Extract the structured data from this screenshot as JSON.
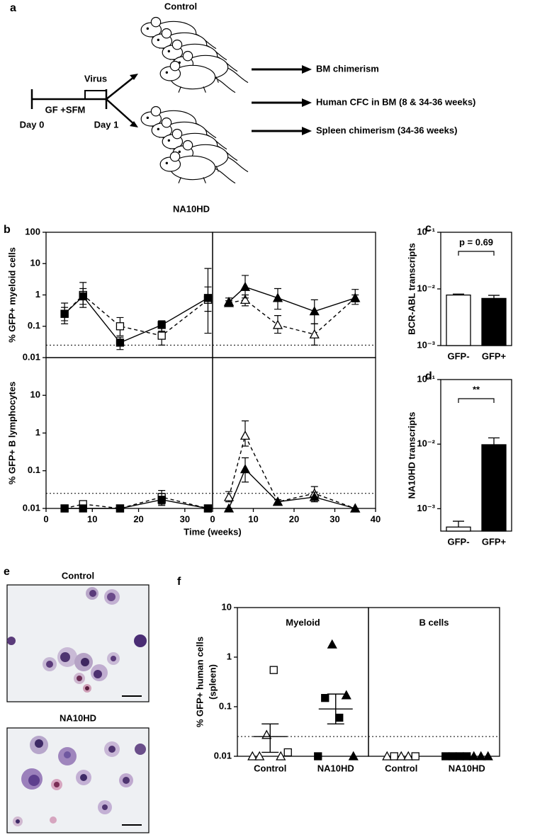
{
  "diagram": {
    "panel_label": "a",
    "groups": [
      "Control",
      "NA10HD"
    ],
    "timeline": {
      "treatment": "Virus",
      "medium": "GF +SFM",
      "start": "Day 0",
      "end": "Day 1"
    },
    "readouts": [
      "BM chimerism",
      "Human CFC in BM (8 & 34-36 weeks)",
      "Spleen chimerism (34-36 weeks)"
    ]
  },
  "micrographs": {
    "panel_label": "e",
    "images": [
      "Control",
      "NA10HD"
    ]
  },
  "chart_data": [
    {
      "type": "line",
      "panel_label": "b",
      "x_label": "Time (weeks)",
      "threshold": 0.025,
      "x": [
        4,
        8,
        16,
        25,
        35
      ],
      "columns": [
        {
          "xlim": [
            0,
            36
          ],
          "xticks": [
            0,
            10,
            20,
            30
          ]
        },
        {
          "xlim": [
            0,
            40
          ],
          "xticks": [
            0,
            10,
            20,
            30,
            40
          ]
        }
      ],
      "rows": [
        {
          "y_label": "% GFP+ myeloid cells",
          "log_scale": true,
          "ylim": [
            0.01,
            100
          ],
          "yticks": [
            0.01,
            0.1,
            1,
            10,
            100
          ],
          "plots": [
            {
              "series": [
                {
                  "marker": "open-square",
                  "dashed": true,
                  "color": "#000000",
                  "values": [
                    0.25,
                    1.0,
                    0.1,
                    0.05,
                    0.7
                  ],
                  "errors": [
                    [
                      0.15,
                      0.4
                    ],
                    [
                      0.5,
                      2.5
                    ],
                    [
                      0.05,
                      0.19
                    ],
                    [
                      0.025,
                      0.1
                    ],
                    [
                      0.06,
                      7.0
                    ]
                  ]
                },
                {
                  "marker": "filled-square",
                  "dashed": false,
                  "color": "#000000",
                  "values": [
                    0.25,
                    0.9,
                    0.03,
                    0.11,
                    0.8
                  ],
                  "errors": [
                    [
                      0.12,
                      0.55
                    ],
                    [
                      0.4,
                      1.6
                    ],
                    [
                      0.018,
                      0.045
                    ],
                    [
                      0.07,
                      0.15
                    ],
                    [
                      0.3,
                      1.8
                    ]
                  ]
                }
              ]
            },
            {
              "series": [
                {
                  "marker": "open-triangle",
                  "dashed": true,
                  "color": "#000000",
                  "values": [
                    0.55,
                    0.7,
                    0.11,
                    0.055,
                    0.8
                  ],
                  "errors": [
                    [
                      0.45,
                      0.65
                    ],
                    [
                      0.45,
                      1.0
                    ],
                    [
                      0.06,
                      0.22
                    ],
                    [
                      0.025,
                      0.12
                    ],
                    [
                      0.6,
                      1.0
                    ]
                  ]
                },
                {
                  "marker": "filled-triangle",
                  "dashed": false,
                  "color": "#000000",
                  "values": [
                    0.6,
                    1.8,
                    0.8,
                    0.3,
                    0.8
                  ],
                  "errors": [
                    [
                      0.45,
                      0.8
                    ],
                    [
                      0.8,
                      4.2
                    ],
                    [
                      0.35,
                      1.6
                    ],
                    [
                      0.12,
                      0.7
                    ],
                    [
                      0.5,
                      1.5
                    ]
                  ]
                }
              ]
            }
          ]
        },
        {
          "y_label": "% GFP+ B lymphocytes",
          "log_scale": true,
          "ylim": [
            0.01,
            100
          ],
          "yticks": [
            0.01,
            0.1,
            1,
            10
          ],
          "plots": [
            {
              "series": [
                {
                  "marker": "open-square",
                  "dashed": true,
                  "color": "#000000",
                  "values": [
                    0.01,
                    0.013,
                    0.01,
                    0.02,
                    0.01
                  ],
                  "errors": [
                    [
                      0.01,
                      0.01
                    ],
                    [
                      0.01,
                      0.016
                    ],
                    [
                      0.01,
                      0.01
                    ],
                    [
                      0.013,
                      0.03
                    ],
                    [
                      0.01,
                      0.01
                    ]
                  ]
                },
                {
                  "marker": "filled-square",
                  "dashed": false,
                  "color": "#000000",
                  "values": [
                    0.01,
                    0.01,
                    0.01,
                    0.017,
                    0.01
                  ],
                  "errors": [
                    [
                      0.01,
                      0.01
                    ],
                    [
                      0.01,
                      0.01
                    ],
                    [
                      0.01,
                      0.01
                    ],
                    [
                      0.012,
                      0.025
                    ],
                    [
                      0.01,
                      0.01
                    ]
                  ]
                }
              ]
            },
            {
              "series": [
                {
                  "marker": "open-triangle",
                  "dashed": true,
                  "color": "#000000",
                  "values": [
                    0.02,
                    0.85,
                    0.015,
                    0.025,
                    0.01
                  ],
                  "errors": [
                    [
                      0.015,
                      0.028
                    ],
                    [
                      0.45,
                      2.1
                    ],
                    [
                      0.013,
                      0.017
                    ],
                    [
                      0.017,
                      0.038
                    ],
                    [
                      0.01,
                      0.01
                    ]
                  ]
                },
                {
                  "marker": "filled-triangle",
                  "dashed": false,
                  "color": "#000000",
                  "values": [
                    0.01,
                    0.11,
                    0.015,
                    0.02,
                    0.01
                  ],
                  "errors": [
                    [
                      0.01,
                      0.01
                    ],
                    [
                      0.05,
                      0.22
                    ],
                    [
                      0.013,
                      0.017
                    ],
                    [
                      0.015,
                      0.027
                    ],
                    [
                      0.01,
                      0.01
                    ]
                  ]
                }
              ]
            }
          ]
        }
      ]
    },
    {
      "type": "bar",
      "panel_label": "c",
      "y_label": "BCR-ABL transcripts",
      "annotation": "p = 0.69",
      "categories": [
        "GFP-",
        "GFP+"
      ],
      "values": [
        0.0078,
        0.0068
      ],
      "errors": [
        0.0003,
        0.0009
      ],
      "colors": [
        "#ffffff",
        "#000000"
      ],
      "log_scale": true,
      "ylim": [
        0.001,
        0.1
      ],
      "yticks": [
        {
          "value": 0.1,
          "label": "10⁻¹"
        },
        {
          "value": 0.01,
          "label": "10⁻²"
        },
        {
          "value": 0.001,
          "label": "10⁻³"
        }
      ]
    },
    {
      "type": "bar",
      "panel_label": "d",
      "y_label": "NA10HD transcripts",
      "annotation": "**",
      "categories": [
        "GFP-",
        "GFP+"
      ],
      "values": [
        0.00052,
        0.0098
      ],
      "errors": [
        0.00012,
        0.0027
      ],
      "colors": [
        "#ffffff",
        "#000000"
      ],
      "log_scale": true,
      "ylim": [
        0.00045,
        0.1
      ],
      "yticks": [
        {
          "value": 0.1,
          "label": "10⁻¹"
        },
        {
          "value": 0.01,
          "label": "10⁻²"
        },
        {
          "value": 0.001,
          "label": "10⁻³"
        }
      ]
    },
    {
      "type": "dot",
      "panel_label": "f",
      "y_label": [
        "% GFP+ human cells",
        "(spleen)"
      ],
      "threshold": 0.025,
      "log_scale": true,
      "ylim": [
        0.01,
        10
      ],
      "yticks": [
        0.01,
        0.1,
        1,
        10
      ],
      "panels": [
        {
          "title": "Myeloid",
          "categories": [
            "Control",
            "NA10HD"
          ],
          "groups": [
            {
              "markers": [
                "open-triangle",
                "open-triangle",
                "open-triangle",
                "open-square",
                "open-triangle",
                "open-square"
              ],
              "values": [
                0.01,
                0.01,
                0.027,
                0.55,
                0.01,
                0.012
              ],
              "mean": 0.025,
              "error": [
                0.012,
                0.045
              ]
            },
            {
              "markers": [
                "filled-square",
                "filled-square",
                "filled-triangle",
                "filled-square",
                "filled-triangle",
                "filled-triangle"
              ],
              "values": [
                0.01,
                0.15,
                1.8,
                0.06,
                0.17,
                0.01
              ],
              "mean": 0.09,
              "error": [
                0.045,
                0.18
              ]
            }
          ]
        },
        {
          "title": "B cells",
          "categories": [
            "Control",
            "NA10HD"
          ],
          "groups": [
            {
              "markers": [
                "open-triangle",
                "open-square",
                "open-triangle",
                "open-triangle",
                "open-square"
              ],
              "values": [
                0.01,
                0.01,
                0.01,
                0.01,
                0.01
              ]
            },
            {
              "markers": [
                "filled-square",
                "filled-square",
                "filled-square",
                "filled-square",
                "filled-triangle",
                "filled-triangle",
                "filled-triangle"
              ],
              "values": [
                0.01,
                0.01,
                0.01,
                0.01,
                0.01,
                0.01,
                0.01
              ]
            }
          ]
        }
      ]
    }
  ]
}
